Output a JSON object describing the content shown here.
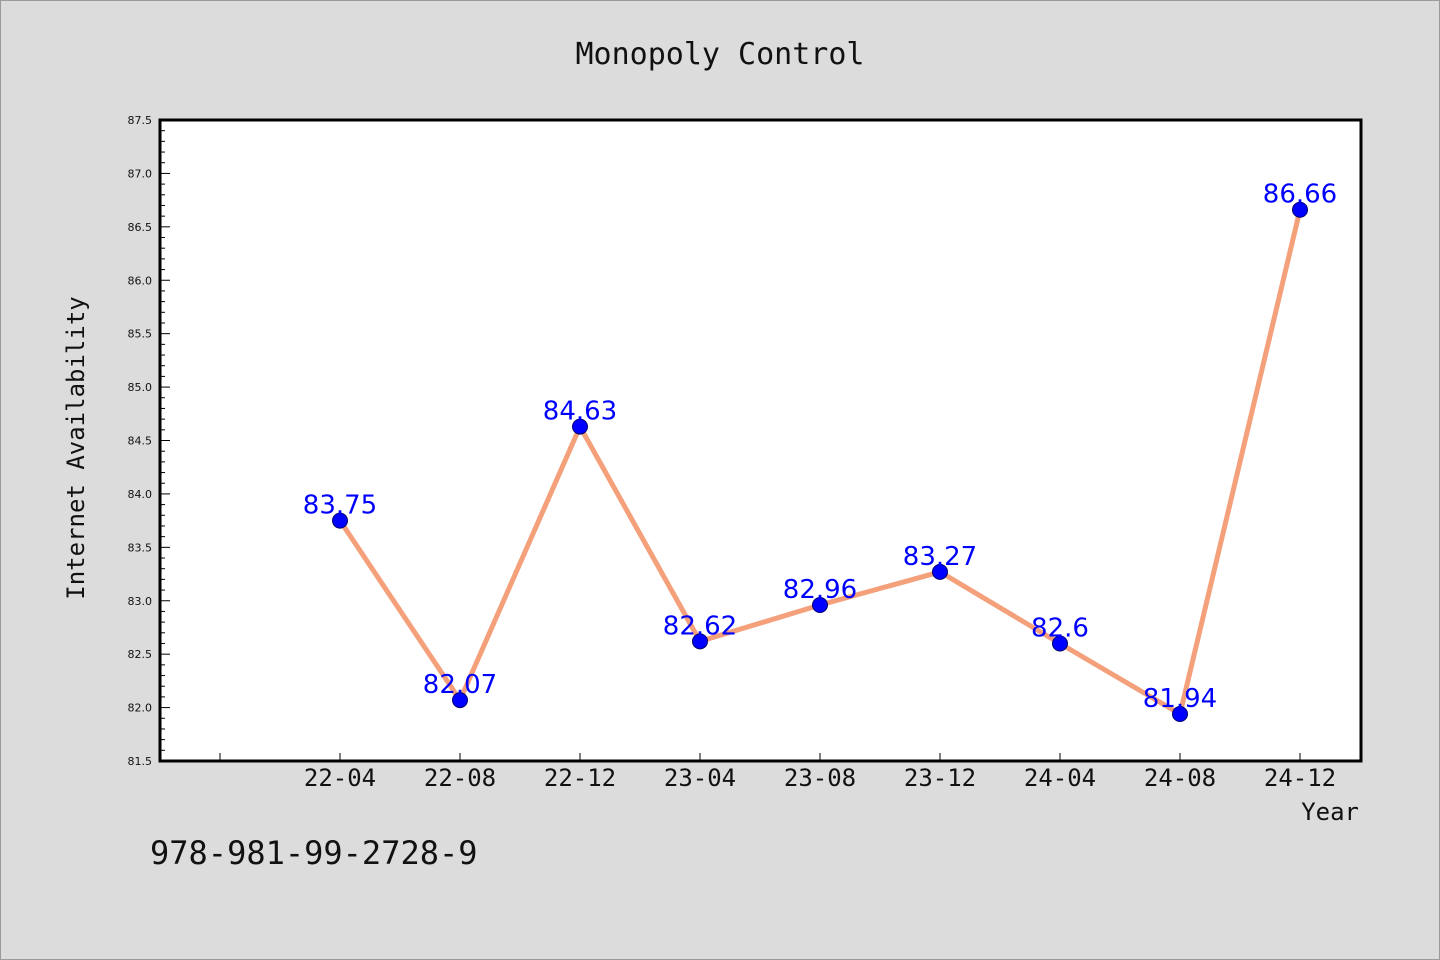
{
  "chart_data": {
    "type": "line",
    "title": "Monopoly Control",
    "xlabel": "Year",
    "ylabel": "Internet Availability",
    "categories": [
      "22-04",
      "22-08",
      "22-12",
      "23-04",
      "23-08",
      "23-12",
      "24-04",
      "24-08",
      "24-12"
    ],
    "series": [
      {
        "values": [
          83.75,
          82.07,
          84.63,
          82.62,
          82.96,
          83.27,
          82.6,
          81.94,
          86.66
        ]
      }
    ],
    "data_labels": [
      "83.75",
      "82.07",
      "84.63",
      "82.62",
      "82.96",
      "83.27",
      "82.6",
      "81.94",
      "86.66"
    ],
    "ylim": [
      81.5,
      87.5
    ],
    "yticks": [
      "81.5",
      "82.0",
      "82.5",
      "83.0",
      "83.5",
      "84.0",
      "84.5",
      "85.0",
      "85.5",
      "86.0",
      "86.5",
      "87.0",
      "87.5"
    ],
    "grid": false,
    "legend": "none",
    "colors": {
      "line": "#f4a07a",
      "marker": "#0000ff",
      "label": "#0000ff"
    }
  },
  "footer": {
    "text": "978-981-99-2728-9"
  }
}
